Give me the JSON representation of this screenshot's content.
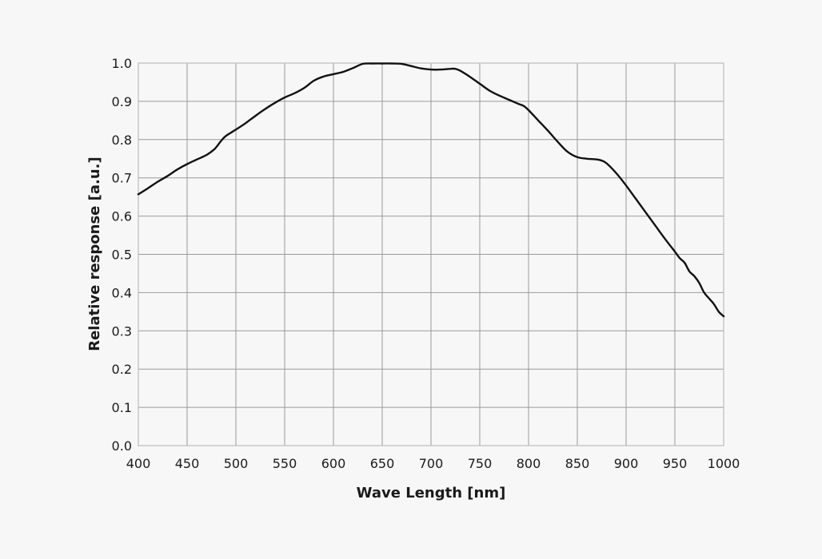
{
  "chart_data": {
    "type": "line",
    "title": "",
    "xlabel": "Wave Length [nm]",
    "ylabel": "Relative response [a.u.]",
    "xlim": [
      400,
      1000
    ],
    "ylim": [
      0.0,
      1.0
    ],
    "grid": true,
    "legend": null,
    "x_ticks": [
      "400",
      "450",
      "500",
      "550",
      "600",
      "650",
      "700",
      "750",
      "800",
      "850",
      "900",
      "950",
      "1000"
    ],
    "y_ticks": [
      "0.0",
      "0.1",
      "0.2",
      "0.3",
      "0.4",
      "0.5",
      "0.6",
      "0.7",
      "0.8",
      "0.9",
      "1.0"
    ],
    "series": [
      {
        "name": "Relative response",
        "color": "#111111",
        "x": [
          400,
          410,
          420,
          430,
          440,
          450,
          460,
          470,
          478,
          485,
          490,
          500,
          510,
          520,
          530,
          540,
          550,
          560,
          570,
          580,
          590,
          600,
          610,
          620,
          630,
          640,
          650,
          660,
          670,
          680,
          690,
          700,
          710,
          720,
          725,
          730,
          740,
          750,
          760,
          770,
          780,
          790,
          795,
          800,
          810,
          820,
          830,
          840,
          850,
          860,
          870,
          875,
          880,
          890,
          900,
          910,
          920,
          930,
          940,
          950,
          955,
          960,
          965,
          970,
          975,
          980,
          985,
          990,
          995,
          1000
        ],
        "y": [
          0.657,
          0.673,
          0.69,
          0.705,
          0.722,
          0.736,
          0.748,
          0.76,
          0.775,
          0.797,
          0.81,
          0.826,
          0.843,
          0.862,
          0.88,
          0.896,
          0.91,
          0.921,
          0.935,
          0.954,
          0.965,
          0.971,
          0.977,
          0.987,
          0.998,
          0.999,
          0.999,
          0.999,
          0.998,
          0.992,
          0.986,
          0.983,
          0.983,
          0.985,
          0.985,
          0.98,
          0.964,
          0.946,
          0.928,
          0.915,
          0.904,
          0.893,
          0.888,
          0.877,
          0.85,
          0.823,
          0.794,
          0.768,
          0.754,
          0.75,
          0.748,
          0.745,
          0.738,
          0.712,
          0.68,
          0.645,
          0.61,
          0.575,
          0.54,
          0.507,
          0.49,
          0.478,
          0.455,
          0.443,
          0.425,
          0.4,
          0.385,
          0.37,
          0.35,
          0.338
        ]
      }
    ]
  }
}
